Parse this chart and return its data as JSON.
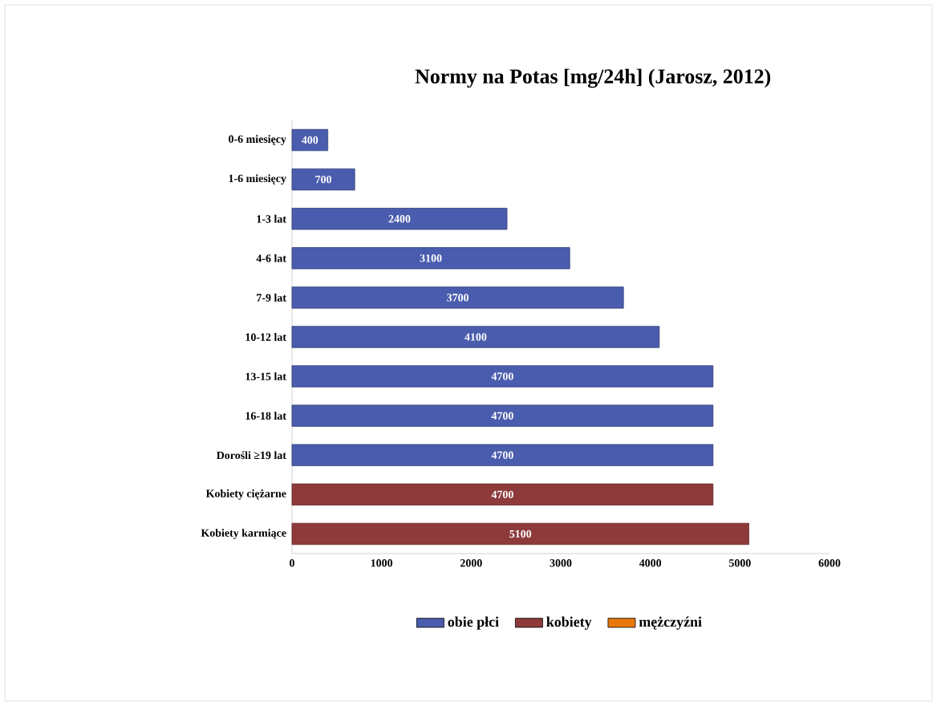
{
  "chart_data": {
    "type": "bar",
    "orientation": "horizontal",
    "title": "Normy na Potas [mg/24h] (Jarosz, 2012)",
    "categories": [
      "0-6 miesięcy",
      "1-6 miesięcy",
      "1-3 lat",
      "4-6 lat",
      "7-9 lat",
      "10-12 lat",
      "13-15 lat",
      "16-18 lat",
      "Dorośli ≥19 lat",
      "Kobiety ciężarne",
      "Kobiety karmiące"
    ],
    "series": [
      {
        "name": "obie płci",
        "color": "#4a5cad",
        "values": [
          400,
          700,
          2400,
          3100,
          3700,
          4100,
          4700,
          4700,
          4700,
          null,
          null
        ]
      },
      {
        "name": "kobiety",
        "color": "#8e3a3b",
        "values": [
          null,
          null,
          null,
          null,
          null,
          null,
          null,
          null,
          null,
          4700,
          5100
        ]
      },
      {
        "name": "mężczyźni",
        "color": "#e8780c",
        "values": [
          null,
          null,
          null,
          null,
          null,
          null,
          null,
          null,
          null,
          null,
          null
        ]
      }
    ],
    "xlim": [
      0,
      6000
    ],
    "xticks": [
      0,
      1000,
      2000,
      3000,
      4000,
      5000,
      6000
    ],
    "data_labels": true,
    "legend": "bottom",
    "grid": false
  }
}
